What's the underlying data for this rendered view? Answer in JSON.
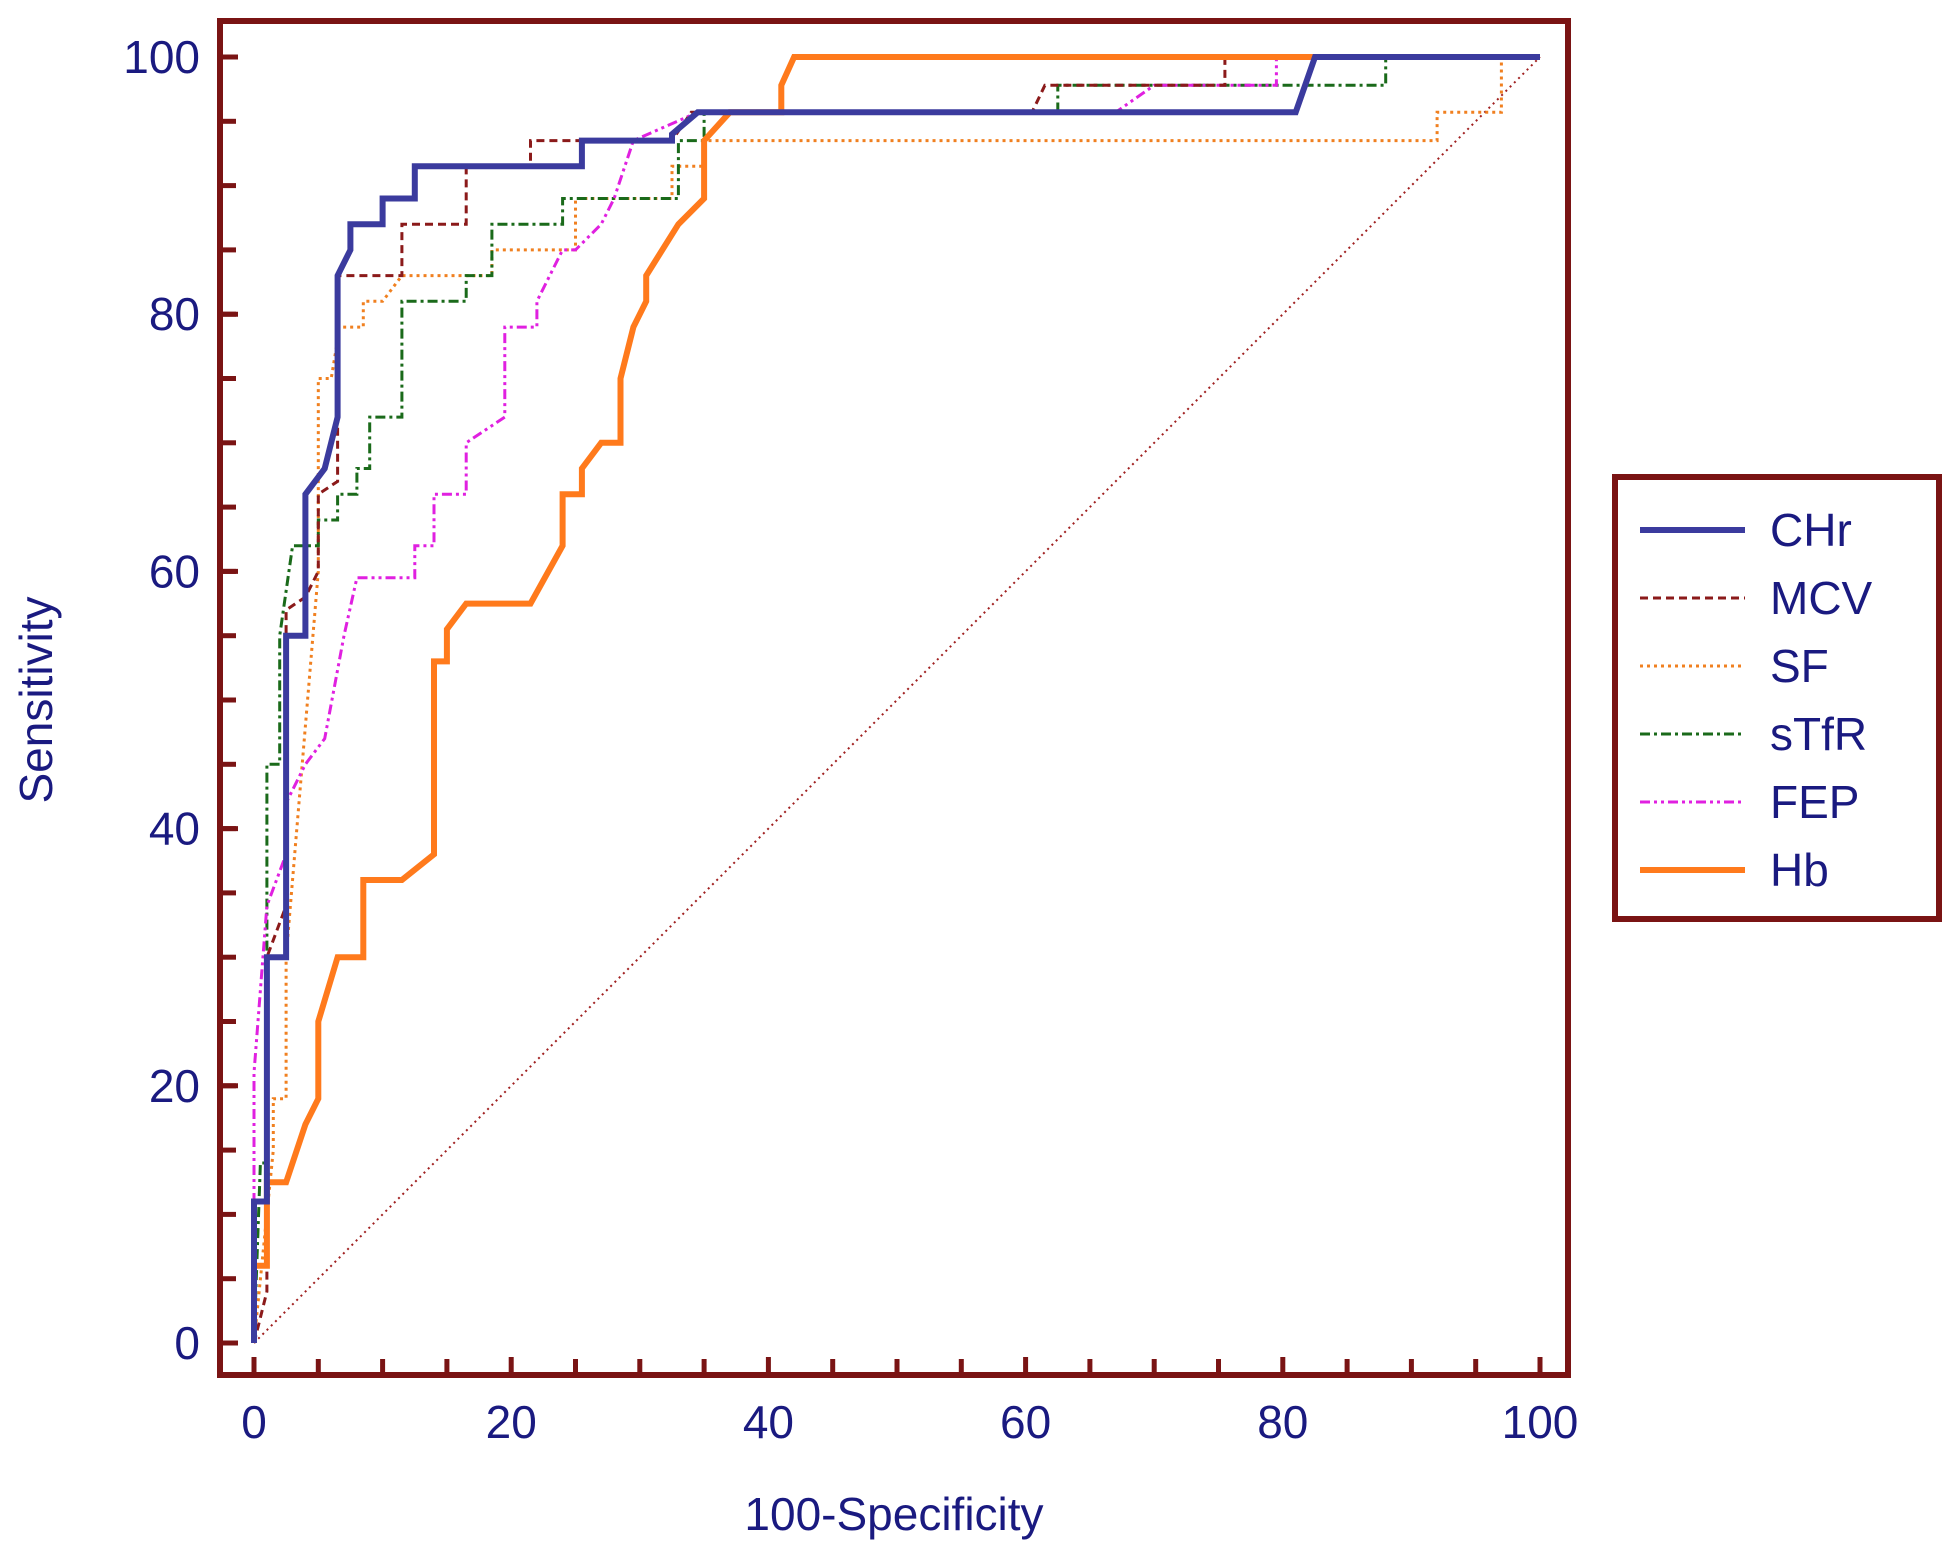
{
  "chart_data": {
    "type": "line",
    "title": "",
    "xlabel": "100-Specificity",
    "ylabel": "Sensitivity",
    "xlim": [
      0,
      100
    ],
    "ylim": [
      0,
      100
    ],
    "xticks": [
      "0",
      "20",
      "40",
      "60",
      "80",
      "100"
    ],
    "yticks": [
      "0",
      "20",
      "40",
      "60",
      "80",
      "100"
    ],
    "legend_position": "right",
    "colors": {
      "frame": "#7a1414",
      "text": "#1a1a80",
      "diagonal": "#a02020"
    },
    "series": [
      {
        "name": "CHr",
        "color": "#3b3b9e",
        "style": "solid-thick",
        "x": [
          0,
          0,
          1,
          1,
          2.5,
          2.5,
          4,
          4,
          5.5,
          6.5,
          6.5,
          7.5,
          7.5,
          10,
          10,
          12.5,
          12.5,
          25.5,
          25.5,
          32.5,
          32.5,
          34.5,
          81,
          82.5,
          82.5,
          100
        ],
        "y": [
          0,
          11,
          11,
          30,
          30,
          55,
          55,
          66,
          68,
          72,
          83,
          85,
          87,
          87,
          89,
          89,
          91.5,
          91.5,
          93.5,
          93.5,
          94,
          95.7,
          95.7,
          100,
          100,
          100
        ]
      },
      {
        "name": "MCV",
        "color": "#8b1a1a",
        "style": "dashed",
        "x": [
          0,
          1,
          1,
          2.5,
          2.5,
          4,
          5,
          5,
          6.5,
          6.5,
          11.5,
          11.5,
          16.5,
          16.5,
          21.5,
          21.5,
          32.5,
          34,
          60.5,
          61.5,
          75.5,
          75.5,
          100
        ],
        "y": [
          0,
          4,
          30,
          34,
          57,
          58,
          60,
          66,
          67,
          83,
          83,
          87,
          87,
          91.5,
          91.5,
          93.5,
          93.5,
          95.7,
          95.7,
          97.8,
          97.8,
          100,
          100
        ]
      },
      {
        "name": "SF",
        "color": "#f08020",
        "style": "dotted",
        "x": [
          0,
          1.5,
          1.5,
          2.5,
          2.5,
          5,
          5,
          6,
          6.5,
          6.5,
          8.5,
          8.5,
          10,
          11.5,
          11.5,
          18.5,
          18.5,
          25,
          25,
          32.5,
          32.5,
          35,
          35,
          92,
          92,
          97,
          97,
          100
        ],
        "y": [
          0,
          15,
          19,
          19,
          30,
          60,
          75,
          75,
          78,
          79,
          79,
          81,
          81,
          83,
          83,
          83,
          85,
          85,
          89,
          89,
          91.5,
          91.5,
          93.5,
          93.5,
          95.7,
          95.7,
          100,
          100
        ]
      },
      {
        "name": "sTfR",
        "color": "#1a6a1a",
        "style": "dashdot",
        "x": [
          0,
          0.5,
          1,
          1,
          2,
          2,
          3,
          5,
          5,
          6.5,
          6.5,
          8,
          8,
          9,
          9,
          11.5,
          11.5,
          16.5,
          16.5,
          18.5,
          18.5,
          24,
          24,
          33,
          33,
          35,
          35,
          62.5,
          62.5,
          88,
          88,
          100
        ],
        "y": [
          0,
          14,
          14,
          45,
          45,
          55,
          62,
          62,
          64,
          64,
          66,
          66,
          68,
          68,
          72,
          72,
          81,
          81,
          83,
          83,
          87,
          87,
          89,
          89,
          93.5,
          93.5,
          95.7,
          95.7,
          97.8,
          97.8,
          100,
          100
        ]
      },
      {
        "name": "FEP",
        "color": "#e020e0",
        "style": "dashdotdot",
        "x": [
          0,
          0,
          1,
          2.5,
          2.5,
          4,
          5.5,
          5.5,
          7,
          7,
          8,
          8,
          12.5,
          12.5,
          14,
          14,
          16.5,
          16.5,
          19.5,
          19.5,
          22,
          22,
          24,
          25,
          25,
          27,
          28,
          29.5,
          29.5,
          34.5,
          67,
          70,
          79.5,
          79.5,
          100
        ],
        "y": [
          0,
          21,
          34,
          38,
          42,
          45,
          47,
          47,
          55,
          55,
          59.5,
          59.5,
          59.5,
          62,
          62,
          66,
          66,
          70,
          72,
          79,
          79,
          81,
          85,
          85,
          85,
          87,
          89,
          93.5,
          93.5,
          95.7,
          95.7,
          97.8,
          97.8,
          100,
          100
        ]
      },
      {
        "name": "Hb",
        "color": "#ff7a1c",
        "style": "solid-thick",
        "x": [
          0,
          0,
          1,
          1,
          2.5,
          4,
          5,
          5,
          6.5,
          6.5,
          8.5,
          8.5,
          11.5,
          14,
          14,
          15,
          15,
          16.5,
          21.5,
          24,
          24,
          25.5,
          25.5,
          27,
          27,
          28.5,
          28.5,
          29.5,
          30.5,
          30.5,
          33,
          35,
          35,
          37,
          41,
          41,
          42,
          100
        ],
        "y": [
          0,
          6,
          6,
          12.5,
          12.5,
          17,
          19,
          25,
          30,
          30,
          30,
          36,
          36,
          38,
          53,
          53,
          55.5,
          57.5,
          57.5,
          62,
          66,
          66,
          68,
          70,
          70,
          70,
          75,
          79,
          81,
          83,
          87,
          89,
          93.5,
          95.7,
          95.7,
          97.8,
          100,
          100
        ]
      }
    ]
  }
}
